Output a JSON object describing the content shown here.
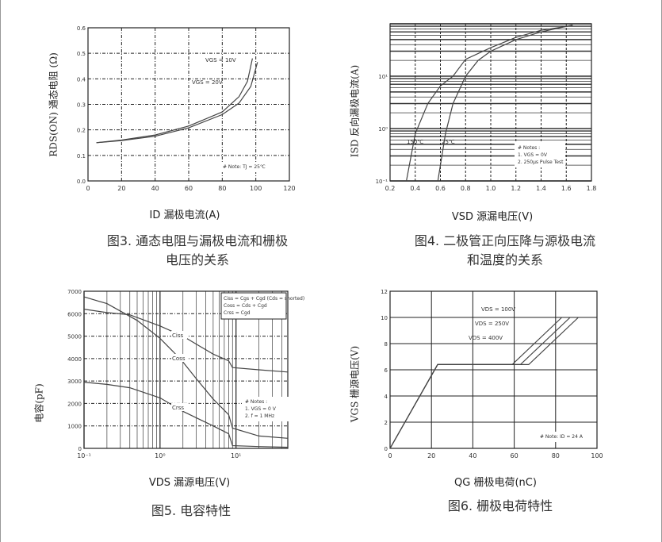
{
  "chart_data": [
    {
      "type": "line",
      "id": "c1",
      "xlabel": "ID 漏极电流(A)",
      "ylabel": "RDS(ON) 通态电阻 (Ω)",
      "caption": [
        "图3. 通态电阻与漏极电流和栅极",
        "电压的关系"
      ],
      "xlim": [
        0,
        120
      ],
      "ylim": [
        0,
        0.6
      ],
      "xscale": "linear",
      "yscale": "linear",
      "grid": true,
      "xticks": [
        0,
        20,
        40,
        60,
        80,
        100,
        120
      ],
      "xtick_labels": [
        "0",
        "20",
        "40",
        "60",
        "80",
        "100",
        "120"
      ],
      "yticks": [
        0,
        0.1,
        0.2,
        0.3,
        0.4,
        0.5,
        0.6
      ],
      "ytick_labels": [
        "0.0",
        "0.1",
        "0.2",
        "0.3",
        "0.4",
        "0.5",
        "0.6"
      ],
      "series": [
        {
          "name": "VGS = 10V",
          "x": [
            5,
            20,
            40,
            60,
            80,
            90,
            95,
            98
          ],
          "y": [
            0.15,
            0.16,
            0.18,
            0.215,
            0.27,
            0.33,
            0.39,
            0.48
          ]
        },
        {
          "name": "VGS = 20V",
          "x": [
            5,
            20,
            40,
            60,
            80,
            90,
            97,
            101
          ],
          "y": [
            0.15,
            0.158,
            0.175,
            0.208,
            0.26,
            0.305,
            0.37,
            0.465
          ]
        }
      ],
      "annotations": [
        "# Note: TJ = 25℃"
      ]
    },
    {
      "type": "line",
      "id": "c2",
      "xlabel": "VSD 源漏电压(V)",
      "ylabel": "ISD 反向漏极电流(A)",
      "caption": [
        "图4. 二极管正向压降与源极电流",
        "和温度的关系"
      ],
      "xlim": [
        0.2,
        1.8
      ],
      "ylim": [
        0.1,
        100
      ],
      "xscale": "linear",
      "yscale": "log",
      "grid": true,
      "xticks": [
        0.2,
        0.4,
        0.6,
        0.8,
        1.0,
        1.2,
        1.4,
        1.6,
        1.8
      ],
      "xtick_labels": [
        "0.2",
        "0.4",
        "0.6",
        "0.8",
        "1.0",
        "1.2",
        "1.4",
        "1.6",
        "1.8"
      ],
      "yticks": [
        0.1,
        1,
        10
      ],
      "ytick_labels": [
        "10⁻¹",
        "10⁰",
        "10¹"
      ],
      "series": [
        {
          "name": "150℃",
          "x": [
            0.33,
            0.4,
            0.5,
            0.6,
            0.7,
            0.8,
            1.0,
            1.2,
            1.4,
            1.65
          ],
          "y": [
            0.1,
            0.8,
            3,
            6.5,
            10,
            21,
            35,
            55,
            75,
            93
          ]
        },
        {
          "name": "25℃",
          "x": [
            0.58,
            0.64,
            0.7,
            0.8,
            0.9,
            1.0,
            1.2,
            1.4,
            1.65
          ],
          "y": [
            0.1,
            0.8,
            3,
            10,
            20,
            30,
            50,
            70,
            95
          ]
        }
      ],
      "annotations": [
        "# Notes :",
        "1. VGS = 0V",
        "2. 250μs Pulse Test"
      ]
    },
    {
      "type": "line",
      "id": "c3",
      "xlabel": "VDS 漏源电压(V)",
      "ylabel": "电容(pF)",
      "caption": [
        "图5. 电容特性"
      ],
      "xlim": [
        0.1,
        48
      ],
      "ylim": [
        0,
        7000
      ],
      "xscale": "log",
      "yscale": "linear",
      "grid": true,
      "xticks": [
        0.1,
        1,
        10
      ],
      "xtick_labels": [
        "10⁻¹",
        "10⁰",
        "10¹"
      ],
      "yticks": [
        0,
        1000,
        2000,
        3000,
        4000,
        5000,
        6000,
        7000
      ],
      "ytick_labels": [
        "0",
        "1000",
        "2000",
        "3000",
        "4000",
        "5000",
        "6000",
        "7000"
      ],
      "series": [
        {
          "name": "Ciss",
          "x": [
            0.1,
            0.2,
            0.4,
            1,
            2,
            5,
            8,
            9,
            20,
            48
          ],
          "y": [
            6200,
            6050,
            5950,
            5450,
            5000,
            4200,
            3900,
            3600,
            3500,
            3400
          ]
        },
        {
          "name": "Coss",
          "x": [
            0.1,
            0.2,
            0.5,
            1,
            1.5,
            2,
            3,
            5,
            8,
            9,
            20,
            48
          ],
          "y": [
            6750,
            6450,
            5700,
            4900,
            4300,
            3850,
            3100,
            2200,
            1500,
            900,
            550,
            450
          ]
        },
        {
          "name": "Crss",
          "x": [
            0.1,
            0.2,
            0.4,
            1,
            2,
            5,
            8,
            9,
            20,
            48
          ],
          "y": [
            2950,
            2850,
            2700,
            2250,
            1650,
            1000,
            650,
            120,
            80,
            50
          ]
        }
      ],
      "legend": [
        "Ciss = Cgs + Cgd (Cds = shorted)",
        "Coss = Cds + Cgd",
        "Crss = Cgd"
      ],
      "annotations": [
        "# Notes :",
        "1. VGS = 0 V",
        "2. f = 1 MHz"
      ]
    },
    {
      "type": "line",
      "id": "c4",
      "xlabel": "QG 栅极电荷(nC)",
      "ylabel": "VGS 栅源电压(V)",
      "caption": [
        "图6. 栅极电荷特性"
      ],
      "xlim": [
        0,
        100
      ],
      "ylim": [
        0,
        12
      ],
      "xscale": "linear",
      "yscale": "linear",
      "grid": true,
      "xticks": [
        0,
        20,
        40,
        60,
        80,
        100
      ],
      "xtick_labels": [
        "0",
        "20",
        "40",
        "60",
        "80",
        "100"
      ],
      "yticks": [
        0,
        2,
        4,
        6,
        8,
        10,
        12
      ],
      "ytick_labels": [
        "0",
        "2",
        "4",
        "6",
        "8",
        "10",
        "12"
      ],
      "series": [
        {
          "name": "VDS = 100V",
          "x": [
            0,
            23,
            59,
            83
          ],
          "y": [
            0,
            6.4,
            6.4,
            10
          ]
        },
        {
          "name": "VDS = 250V",
          "x": [
            0,
            23,
            63,
            87
          ],
          "y": [
            0,
            6.4,
            6.4,
            10
          ]
        },
        {
          "name": "VDS = 400V",
          "x": [
            0,
            23,
            67,
            91
          ],
          "y": [
            0,
            6.4,
            6.4,
            10
          ]
        }
      ],
      "annotations": [
        "# Note: ID = 24 A"
      ]
    }
  ]
}
